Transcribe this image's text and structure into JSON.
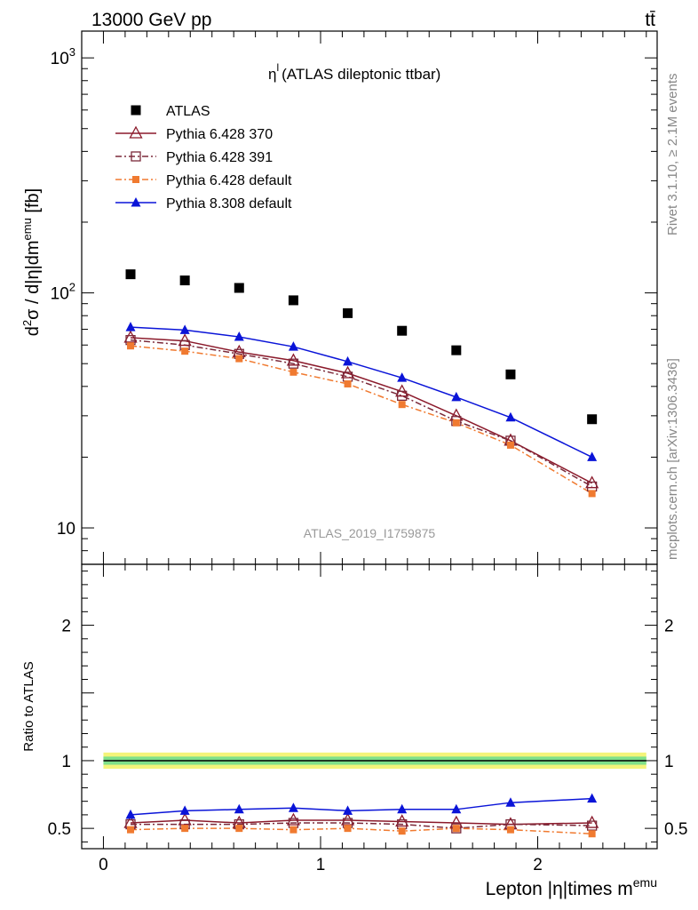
{
  "header": {
    "energy_label": "13000 GeV pp",
    "process_label": "tt̄"
  },
  "side": {
    "rivet_label": "Rivet 3.1.10, ≥ 2.1M events",
    "mcplots_label": "mcplots.cern.ch [arXiv:1306.3436]"
  },
  "chart_data": [
    {
      "type": "line",
      "title": "η (ATLAS dileptonic ttbar)",
      "title_sup": "l",
      "analysis_id": "ATLAS_2019_I1759875",
      "ylabel": "d²σ / d|η|dm^emu [fb]",
      "xlabel": "",
      "yscale": "log",
      "ylim": [
        7,
        1300
      ],
      "xlim": [
        -0.1,
        2.55
      ],
      "y_ticks": [
        {
          "v": 10,
          "label": "10"
        },
        {
          "v": 100,
          "label": "10²"
        },
        {
          "v": 1000,
          "label": "10³"
        }
      ],
      "legend_position": "upper-left",
      "x": [
        0.125,
        0.375,
        0.625,
        0.875,
        1.125,
        1.375,
        1.625,
        1.875,
        2.25
      ],
      "series": [
        {
          "name": "ATLAS",
          "color": "#000000",
          "marker": "square",
          "line": "none",
          "values": [
            120,
            113,
            105,
            93,
            82,
            69,
            57,
            45,
            29
          ]
        },
        {
          "name": "Pythia 6.428 370",
          "color": "#8b1a2b",
          "marker": "triangle-open",
          "line": "solid",
          "values": [
            64.5,
            62.5,
            56,
            51.5,
            45.5,
            38,
            30,
            23.5,
            15.5
          ]
        },
        {
          "name": "Pythia 6.428 391",
          "color": "#7b2a3a",
          "marker": "square-open",
          "line": "dashdot",
          "values": [
            63,
            60,
            55,
            50,
            44,
            36.5,
            28.5,
            23.5,
            15
          ]
        },
        {
          "name": "Pythia 6.428 default",
          "color": "#f07a30",
          "marker": "square-small",
          "line": "dashdot",
          "values": [
            59.5,
            56.5,
            52.5,
            46,
            41,
            33.5,
            28,
            22.5,
            14
          ]
        },
        {
          "name": "Pythia 8.308 default",
          "color": "#0a14d8",
          "marker": "triangle",
          "line": "solid",
          "values": [
            71.5,
            69.5,
            65,
            59,
            51,
            43.5,
            36,
            29.5,
            20
          ]
        }
      ]
    },
    {
      "type": "line",
      "ylabel": "Ratio to ATLAS",
      "xlabel": "Lepton |η|times m^emu",
      "ylim": [
        0.35,
        2.45
      ],
      "xlim": [
        -0.1,
        2.55
      ],
      "y_ticks": [
        {
          "v": 0.5,
          "label": "0.5"
        },
        {
          "v": 1,
          "label": "1"
        },
        {
          "v": 2,
          "label": "2"
        }
      ],
      "x_ticks": [
        {
          "v": 0,
          "label": "0"
        },
        {
          "v": 1,
          "label": "1"
        },
        {
          "v": 2,
          "label": "2"
        }
      ],
      "x": [
        0.125,
        0.375,
        0.625,
        0.875,
        1.125,
        1.375,
        1.625,
        1.875,
        2.25
      ],
      "band": {
        "inner": 0.03,
        "outer": 0.06,
        "inner_color": "#7fe08a",
        "outer_color": "#f4f47a"
      },
      "series": [
        {
          "name": "Pythia 6.428 370",
          "values": [
            0.54,
            0.56,
            0.54,
            0.56,
            0.56,
            0.55,
            0.54,
            0.53,
            0.54
          ]
        },
        {
          "name": "Pythia 6.428 391",
          "values": [
            0.53,
            0.53,
            0.53,
            0.54,
            0.54,
            0.53,
            0.5,
            0.53,
            0.52
          ]
        },
        {
          "name": "Pythia 6.428 default",
          "values": [
            0.49,
            0.5,
            0.5,
            0.49,
            0.5,
            0.48,
            0.5,
            0.49,
            0.46
          ]
        },
        {
          "name": "Pythia 8.308 default",
          "values": [
            0.6,
            0.63,
            0.64,
            0.65,
            0.63,
            0.64,
            0.64,
            0.69,
            0.72
          ]
        }
      ]
    }
  ]
}
